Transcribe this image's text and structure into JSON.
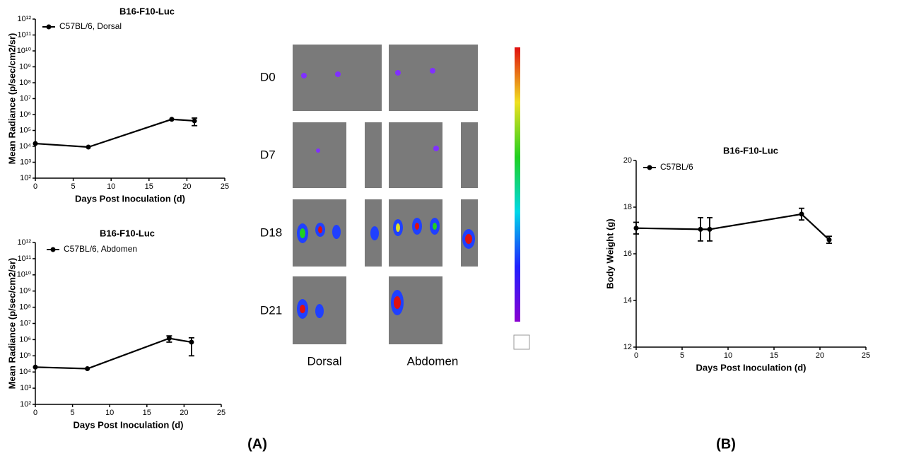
{
  "chart_data": [
    {
      "type": "line",
      "title": "B16-F10-Luc",
      "x_label": "Days Post Inoculation (d)",
      "y_label": "Mean Radiance (p/sec/cm2/sr)",
      "log_scale": true,
      "x": [
        0,
        7,
        18,
        21
      ],
      "series": [
        {
          "name": "C57BL/6,  Dorsal",
          "color": "#000000",
          "values": [
            15000,
            9000,
            500000,
            400000
          ],
          "errors": [
            0,
            0,
            0,
            200000
          ]
        }
      ],
      "xlim": [
        0,
        25
      ],
      "xticks": [
        0,
        5,
        10,
        15,
        20,
        25
      ],
      "ylim": [
        100,
        1000000000000
      ],
      "yticks": [
        {
          "value": 100,
          "label": "10²"
        },
        {
          "value": 1000,
          "label": "10³"
        },
        {
          "value": 10000,
          "label": "10⁴"
        },
        {
          "value": 100000,
          "label": "10⁵"
        },
        {
          "value": 1000000,
          "label": "10⁶"
        },
        {
          "value": 10000000,
          "label": "10⁷"
        },
        {
          "value": 100000000,
          "label": "10⁸"
        },
        {
          "value": 1000000000,
          "label": "10⁹"
        },
        {
          "value": 10000000000,
          "label": "10¹⁰"
        },
        {
          "value": 100000000000,
          "label": "10¹¹"
        },
        {
          "value": 1000000000000,
          "label": "10¹²"
        }
      ]
    },
    {
      "type": "line",
      "title": "B16-F10-Luc",
      "x_label": "Days Post Inoculation (d)",
      "y_label": "Mean Radiance (p/sec/cm2/sr)",
      "log_scale": true,
      "x": [
        0,
        7,
        18,
        21
      ],
      "series": [
        {
          "name": "C57BL/6,  Abdomen",
          "color": "#000000",
          "values": [
            20000,
            16000,
            1200000,
            700000
          ],
          "errors": [
            0,
            0,
            500000,
            600000
          ]
        }
      ],
      "xlim": [
        0,
        25
      ],
      "xticks": [
        0,
        5,
        10,
        15,
        20,
        25
      ],
      "ylim": [
        100,
        1000000000000
      ],
      "yticks": [
        {
          "value": 100,
          "label": "10²"
        },
        {
          "value": 1000,
          "label": "10³"
        },
        {
          "value": 10000,
          "label": "10⁴"
        },
        {
          "value": 100000,
          "label": "10⁵"
        },
        {
          "value": 1000000,
          "label": "10⁶"
        },
        {
          "value": 10000000,
          "label": "10⁷"
        },
        {
          "value": 100000000,
          "label": "10⁸"
        },
        {
          "value": 1000000000,
          "label": "10⁹"
        },
        {
          "value": 10000000000,
          "label": "10¹⁰"
        },
        {
          "value": 100000000000,
          "label": "10¹¹"
        },
        {
          "value": 1000000000000,
          "label": "10¹²"
        }
      ]
    },
    {
      "type": "line",
      "title": "B16-F10-Luc",
      "x_label": "Days Post Inoculation (d)",
      "y_label": "Body Weight (g)",
      "log_scale": false,
      "x": [
        0,
        7,
        8,
        18,
        21
      ],
      "series": [
        {
          "name": "C57BL/6",
          "color": "#000000",
          "values": [
            17.1,
            17.05,
            17.05,
            17.7,
            16.6
          ],
          "errors": [
            0.25,
            0.5,
            0.5,
            0.25,
            0.15
          ]
        }
      ],
      "xlim": [
        0,
        25
      ],
      "xticks": [
        0,
        5,
        10,
        15,
        20,
        25
      ],
      "ylim": [
        12,
        20
      ],
      "yticks": [
        12,
        14,
        16,
        18,
        20
      ]
    }
  ],
  "imaging": {
    "days": [
      "D0",
      "D7",
      "D18",
      "D21"
    ],
    "views": [
      "Dorsal",
      "Abdomen"
    ]
  },
  "panels": [
    "(A)",
    "(B)"
  ]
}
